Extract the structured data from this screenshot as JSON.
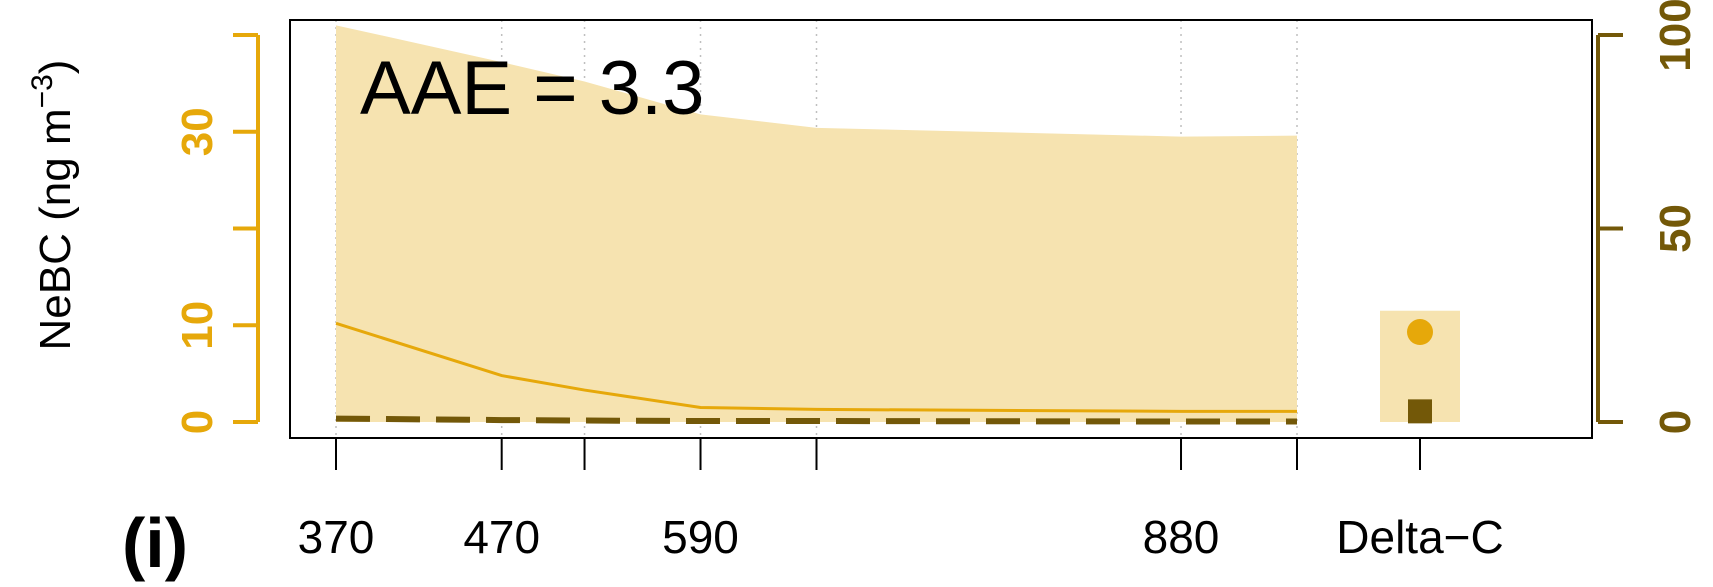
{
  "colors": {
    "left_axis": "#E6A80A",
    "right_axis": "#735808",
    "band_fill": "#F6E3B0",
    "grid": "#bfbfbf"
  },
  "chart_data": {
    "type": "line",
    "panel_label": "(i)",
    "annotation": "AAE = 3.3",
    "ylabel_left": "NeBC (ng m−3)",
    "ylabel_left_main": "NeBC (ng m",
    "ylabel_left_exp": "−3",
    "ylabel_left_close": ")",
    "ylim_left": [
      0,
      40
    ],
    "ylim_right": [
      0,
      100
    ],
    "yticks_left": [
      0,
      10,
      20,
      30,
      40
    ],
    "yticks_left_labels": [
      "0",
      "10",
      "30"
    ],
    "yticks_right": [
      0,
      50,
      100
    ],
    "yticks_right_labels": [
      "0",
      "50",
      "100"
    ],
    "xlim": [
      350,
      1120
    ],
    "x_tick_positions": [
      370,
      470,
      520,
      590,
      660,
      880,
      950,
      1025
    ],
    "x_tick_labels": [
      {
        "x": 370,
        "label": "370"
      },
      {
        "x": 470,
        "label": "470"
      },
      {
        "x": 590,
        "label": "590"
      },
      {
        "x": 880,
        "label": "880"
      },
      {
        "x": 1025,
        "label": "Delta−C"
      }
    ],
    "x_gridlines": [
      370,
      470,
      520,
      590,
      660,
      880,
      950
    ],
    "band": {
      "x": [
        370,
        470,
        520,
        590,
        660,
        880,
        950
      ],
      "upper": [
        41.0,
        37.2,
        35.2,
        31.8,
        30.4,
        29.5,
        29.6
      ],
      "lower": [
        0,
        0,
        0,
        0,
        0,
        0,
        0
      ]
    },
    "series": [
      {
        "style": "solid",
        "axis": "left",
        "x": [
          370,
          470,
          520,
          590,
          660,
          880,
          950
        ],
        "values": [
          10.2,
          4.8,
          3.3,
          1.5,
          1.3,
          1.1,
          1.1
        ]
      },
      {
        "style": "dashed",
        "axis": "left",
        "x": [
          370,
          470,
          520,
          590,
          660,
          880,
          950
        ],
        "values": [
          0.35,
          0.2,
          0.15,
          0.1,
          0.1,
          0.05,
          0.05
        ]
      }
    ],
    "delta_c": {
      "x": 1025,
      "band_upper": 11.5,
      "band_lower": 0,
      "circle_value": 9.3,
      "square_value": 1.1
    }
  }
}
